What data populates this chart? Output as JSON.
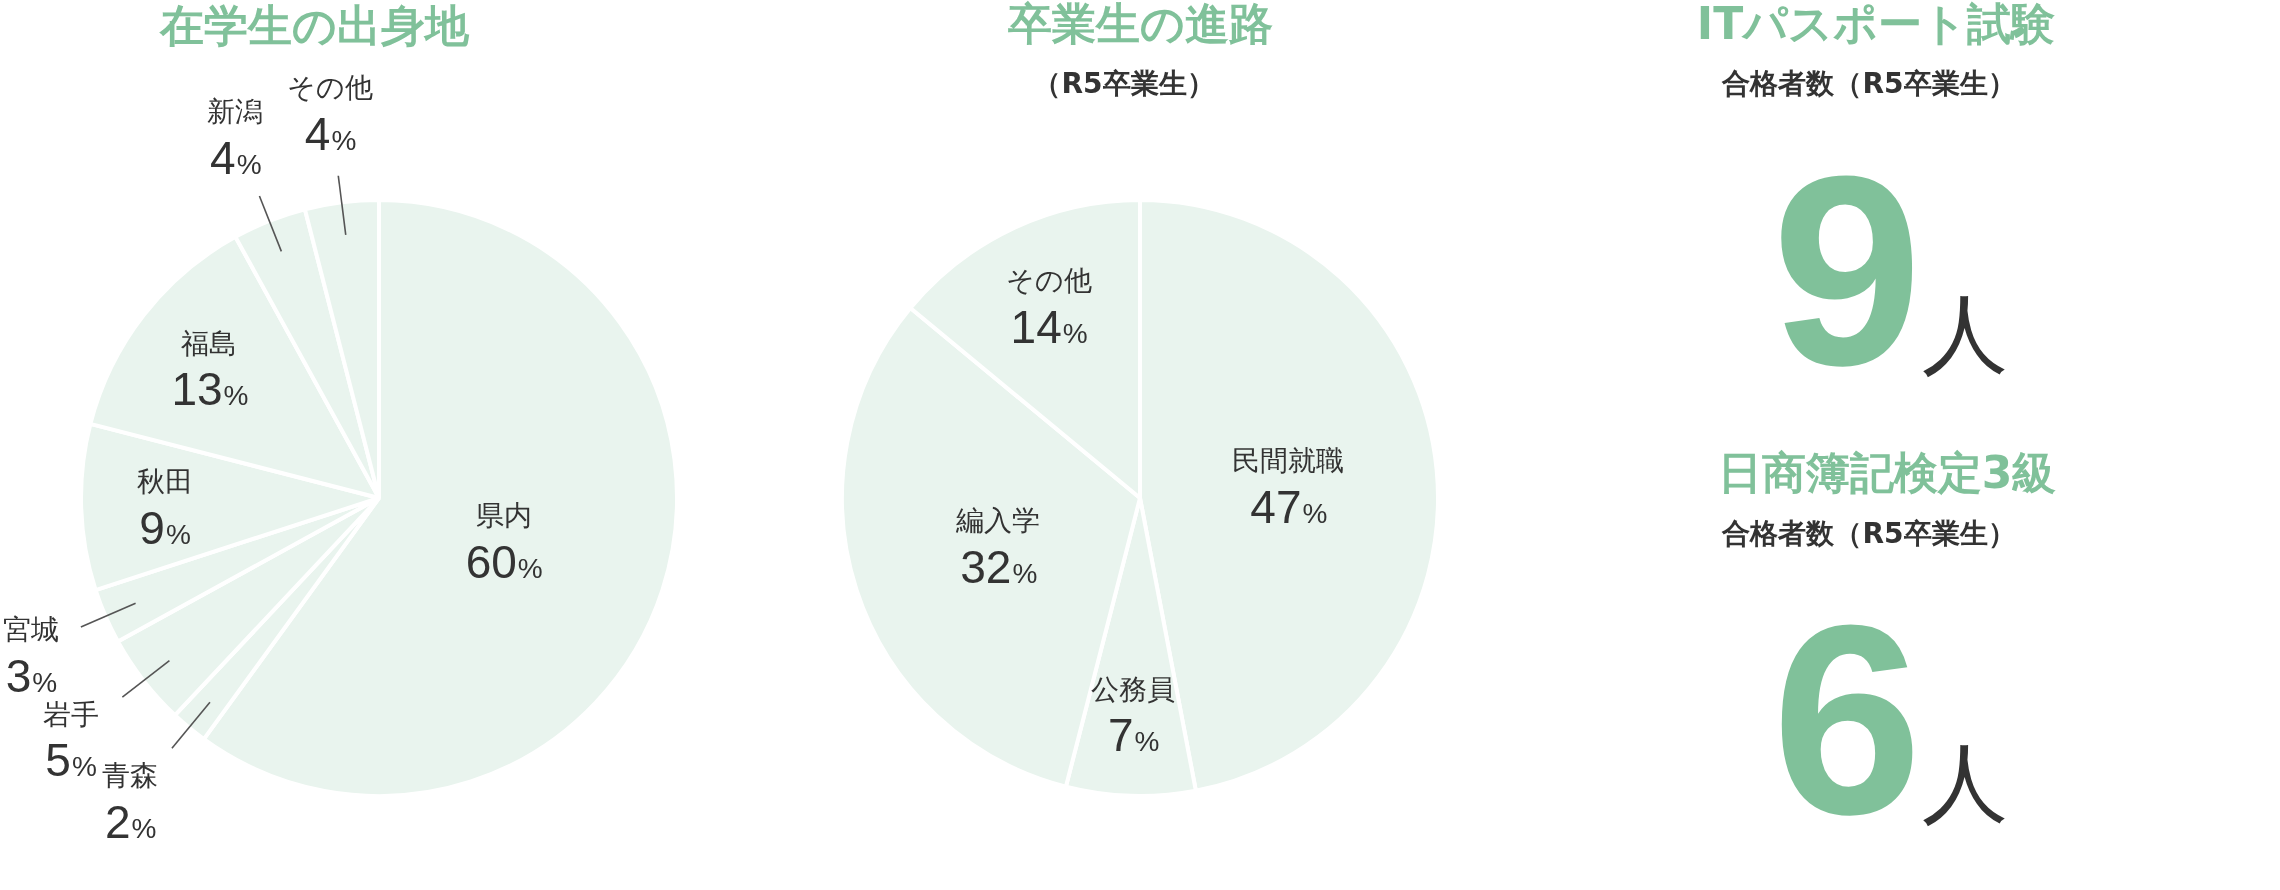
{
  "chart_data": [
    {
      "type": "pie",
      "title": "在学生の出身地",
      "categories": [
        "県内",
        "青森",
        "岩手",
        "宮城",
        "秋田",
        "福島",
        "新潟",
        "その他"
      ],
      "values": [
        60,
        2,
        5,
        3,
        9,
        13,
        4,
        4
      ],
      "colors": [
        "#e9f4ee",
        "#e9f4ee",
        "#e9f4ee",
        "#e9f4ee",
        "#e9f4ee",
        "#e9f4ee",
        "#e9f4ee",
        "#e9f4ee"
      ],
      "value_labels": [
        "60%",
        "2%",
        "5%",
        "3%",
        "9%",
        "13%",
        "4%",
        "4%"
      ]
    },
    {
      "type": "pie",
      "title": "卒業生の進路",
      "subtitle": "（R5卒業生）",
      "categories": [
        "民間就職",
        "公務員",
        "編入学",
        "その他"
      ],
      "values": [
        47,
        7,
        32,
        14
      ],
      "colors": [
        "#e9f4ee",
        "#e9f4ee",
        "#e9f4ee",
        "#e9f4ee"
      ],
      "value_labels": [
        "47%",
        "7%",
        "32%",
        "14%"
      ]
    },
    {
      "type": "other",
      "title": "ITパスポート試験",
      "subtitle": "合格者数（R5卒業生）",
      "annotations": [
        "9",
        "人"
      ]
    },
    {
      "type": "other",
      "title": "日商簿記検定3級",
      "subtitle": "合格者数（R5卒業生）",
      "annotations": [
        "6",
        "人"
      ]
    }
  ]
}
